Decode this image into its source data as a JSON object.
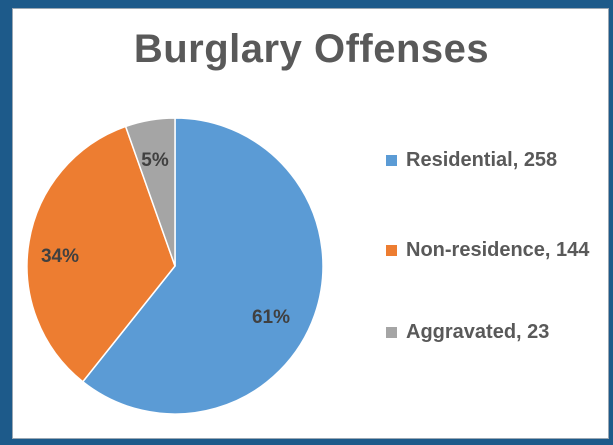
{
  "chart_data": {
    "type": "pie",
    "title": "Burglary Offenses",
    "slices": [
      {
        "name": "Residential",
        "value": 258,
        "percent_label": "61%",
        "legend_label": "Residential, 258",
        "color": "#5b9bd5"
      },
      {
        "name": "Non-residence",
        "value": 144,
        "percent_label": "34%",
        "legend_label": "Non-residence, 144",
        "color": "#ed7d31"
      },
      {
        "name": "Aggravated",
        "value": 23,
        "percent_label": "5%",
        "legend_label": "Aggravated, 23",
        "color": "#a5a5a5"
      }
    ],
    "legend_position": "right",
    "start_angle_deg": 0,
    "direction": "clockwise"
  }
}
